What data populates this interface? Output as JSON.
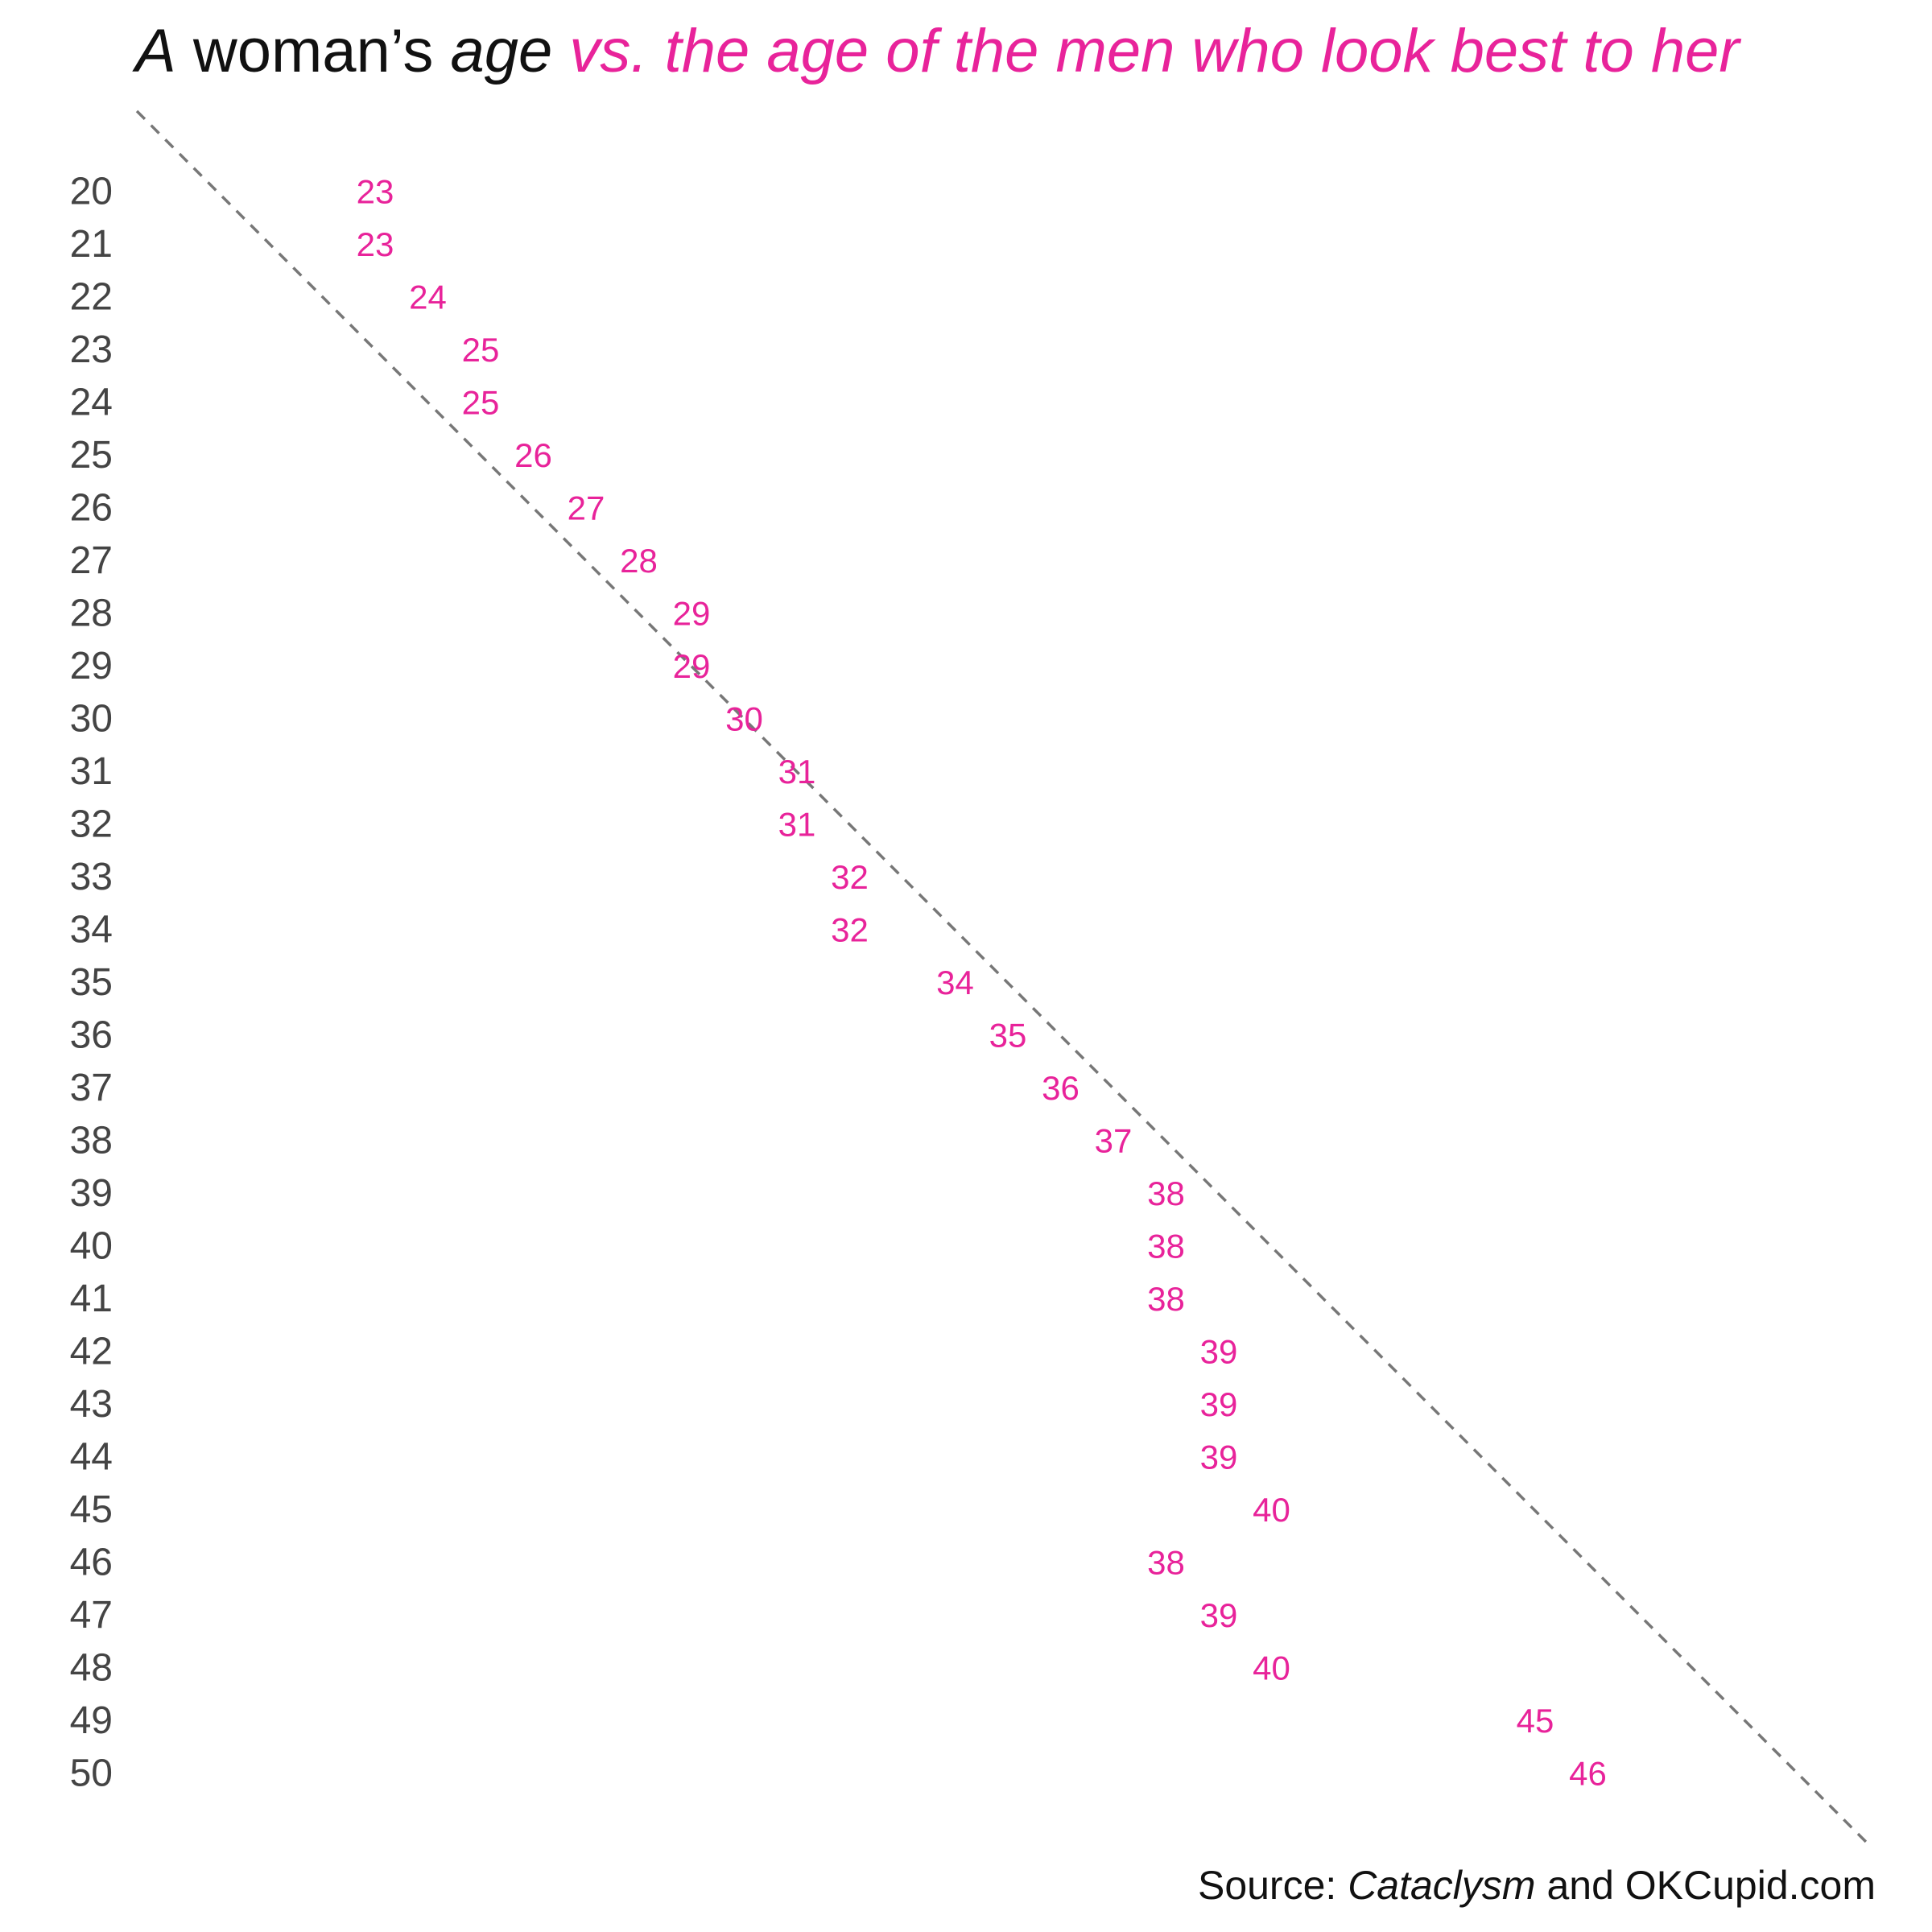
{
  "title": {
    "part1": "A",
    "part2": " woman’s ",
    "part3": "age",
    "part4": " vs. the age of the men who look best to her"
  },
  "colors": {
    "accent": "#e8239a",
    "text": "#111111",
    "axis_text": "#444444",
    "reference_line": "#777777"
  },
  "chart_data": {
    "type": "scatter",
    "title": "A woman’s age vs. the age of the men who look best to her",
    "xlabel": "",
    "ylabel": "",
    "ylim": [
      20,
      50
    ],
    "xlim": [
      19,
      52
    ],
    "grid": false,
    "reference_line": "dashed diagonal y = x",
    "y_tick_labels": [
      "20",
      "21",
      "22",
      "23",
      "24",
      "25",
      "26",
      "27",
      "28",
      "29",
      "30",
      "31",
      "32",
      "33",
      "34",
      "35",
      "36",
      "37",
      "38",
      "39",
      "40",
      "41",
      "42",
      "43",
      "44",
      "45",
      "46",
      "47",
      "48",
      "49",
      "50"
    ],
    "series": [
      {
        "points": [
          {
            "woman_age": 20,
            "men_age": 23
          },
          {
            "woman_age": 21,
            "men_age": 23
          },
          {
            "woman_age": 22,
            "men_age": 24
          },
          {
            "woman_age": 23,
            "men_age": 25
          },
          {
            "woman_age": 24,
            "men_age": 25
          },
          {
            "woman_age": 25,
            "men_age": 26
          },
          {
            "woman_age": 26,
            "men_age": 27
          },
          {
            "woman_age": 27,
            "men_age": 28
          },
          {
            "woman_age": 28,
            "men_age": 29
          },
          {
            "woman_age": 29,
            "men_age": 29
          },
          {
            "woman_age": 30,
            "men_age": 30
          },
          {
            "woman_age": 31,
            "men_age": 31
          },
          {
            "woman_age": 32,
            "men_age": 31
          },
          {
            "woman_age": 33,
            "men_age": 32
          },
          {
            "woman_age": 34,
            "men_age": 32
          },
          {
            "woman_age": 35,
            "men_age": 34
          },
          {
            "woman_age": 36,
            "men_age": 35
          },
          {
            "woman_age": 37,
            "men_age": 36
          },
          {
            "woman_age": 38,
            "men_age": 37
          },
          {
            "woman_age": 39,
            "men_age": 38
          },
          {
            "woman_age": 40,
            "men_age": 38
          },
          {
            "woman_age": 41,
            "men_age": 38
          },
          {
            "woman_age": 42,
            "men_age": 39
          },
          {
            "woman_age": 43,
            "men_age": 39
          },
          {
            "woman_age": 44,
            "men_age": 39
          },
          {
            "woman_age": 45,
            "men_age": 40
          },
          {
            "woman_age": 46,
            "men_age": 38
          },
          {
            "woman_age": 47,
            "men_age": 39
          },
          {
            "woman_age": 48,
            "men_age": 40
          },
          {
            "woman_age": 49,
            "men_age": 45
          },
          {
            "woman_age": 50,
            "men_age": 46
          }
        ]
      }
    ]
  },
  "source": {
    "prefix": "Source: ",
    "italic": "Cataclysm",
    "suffix": " and OKCupid.com"
  }
}
